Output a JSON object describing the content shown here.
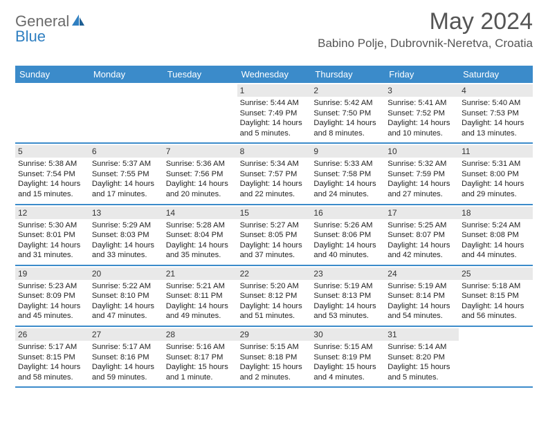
{
  "logo": {
    "general": "General",
    "blue": "Blue"
  },
  "header": {
    "month_title": "May 2024",
    "location": "Babino Polje, Dubrovnik-Neretva, Croatia"
  },
  "colors": {
    "header_bg": "#3b8bca",
    "header_text": "#ffffff",
    "daynum_bg": "#e9e9e9",
    "border": "#3b8bca",
    "title_color": "#555555",
    "text_color": "#222222"
  },
  "weekdays": [
    "Sunday",
    "Monday",
    "Tuesday",
    "Wednesday",
    "Thursday",
    "Friday",
    "Saturday"
  ],
  "weeks": [
    [
      {
        "empty": true
      },
      {
        "empty": true
      },
      {
        "empty": true
      },
      {
        "num": "1",
        "sunrise": "Sunrise: 5:44 AM",
        "sunset": "Sunset: 7:49 PM",
        "day1": "Daylight: 14 hours",
        "day2": "and 5 minutes."
      },
      {
        "num": "2",
        "sunrise": "Sunrise: 5:42 AM",
        "sunset": "Sunset: 7:50 PM",
        "day1": "Daylight: 14 hours",
        "day2": "and 8 minutes."
      },
      {
        "num": "3",
        "sunrise": "Sunrise: 5:41 AM",
        "sunset": "Sunset: 7:52 PM",
        "day1": "Daylight: 14 hours",
        "day2": "and 10 minutes."
      },
      {
        "num": "4",
        "sunrise": "Sunrise: 5:40 AM",
        "sunset": "Sunset: 7:53 PM",
        "day1": "Daylight: 14 hours",
        "day2": "and 13 minutes."
      }
    ],
    [
      {
        "num": "5",
        "sunrise": "Sunrise: 5:38 AM",
        "sunset": "Sunset: 7:54 PM",
        "day1": "Daylight: 14 hours",
        "day2": "and 15 minutes."
      },
      {
        "num": "6",
        "sunrise": "Sunrise: 5:37 AM",
        "sunset": "Sunset: 7:55 PM",
        "day1": "Daylight: 14 hours",
        "day2": "and 17 minutes."
      },
      {
        "num": "7",
        "sunrise": "Sunrise: 5:36 AM",
        "sunset": "Sunset: 7:56 PM",
        "day1": "Daylight: 14 hours",
        "day2": "and 20 minutes."
      },
      {
        "num": "8",
        "sunrise": "Sunrise: 5:34 AM",
        "sunset": "Sunset: 7:57 PM",
        "day1": "Daylight: 14 hours",
        "day2": "and 22 minutes."
      },
      {
        "num": "9",
        "sunrise": "Sunrise: 5:33 AM",
        "sunset": "Sunset: 7:58 PM",
        "day1": "Daylight: 14 hours",
        "day2": "and 24 minutes."
      },
      {
        "num": "10",
        "sunrise": "Sunrise: 5:32 AM",
        "sunset": "Sunset: 7:59 PM",
        "day1": "Daylight: 14 hours",
        "day2": "and 27 minutes."
      },
      {
        "num": "11",
        "sunrise": "Sunrise: 5:31 AM",
        "sunset": "Sunset: 8:00 PM",
        "day1": "Daylight: 14 hours",
        "day2": "and 29 minutes."
      }
    ],
    [
      {
        "num": "12",
        "sunrise": "Sunrise: 5:30 AM",
        "sunset": "Sunset: 8:01 PM",
        "day1": "Daylight: 14 hours",
        "day2": "and 31 minutes."
      },
      {
        "num": "13",
        "sunrise": "Sunrise: 5:29 AM",
        "sunset": "Sunset: 8:03 PM",
        "day1": "Daylight: 14 hours",
        "day2": "and 33 minutes."
      },
      {
        "num": "14",
        "sunrise": "Sunrise: 5:28 AM",
        "sunset": "Sunset: 8:04 PM",
        "day1": "Daylight: 14 hours",
        "day2": "and 35 minutes."
      },
      {
        "num": "15",
        "sunrise": "Sunrise: 5:27 AM",
        "sunset": "Sunset: 8:05 PM",
        "day1": "Daylight: 14 hours",
        "day2": "and 37 minutes."
      },
      {
        "num": "16",
        "sunrise": "Sunrise: 5:26 AM",
        "sunset": "Sunset: 8:06 PM",
        "day1": "Daylight: 14 hours",
        "day2": "and 40 minutes."
      },
      {
        "num": "17",
        "sunrise": "Sunrise: 5:25 AM",
        "sunset": "Sunset: 8:07 PM",
        "day1": "Daylight: 14 hours",
        "day2": "and 42 minutes."
      },
      {
        "num": "18",
        "sunrise": "Sunrise: 5:24 AM",
        "sunset": "Sunset: 8:08 PM",
        "day1": "Daylight: 14 hours",
        "day2": "and 44 minutes."
      }
    ],
    [
      {
        "num": "19",
        "sunrise": "Sunrise: 5:23 AM",
        "sunset": "Sunset: 8:09 PM",
        "day1": "Daylight: 14 hours",
        "day2": "and 45 minutes."
      },
      {
        "num": "20",
        "sunrise": "Sunrise: 5:22 AM",
        "sunset": "Sunset: 8:10 PM",
        "day1": "Daylight: 14 hours",
        "day2": "and 47 minutes."
      },
      {
        "num": "21",
        "sunrise": "Sunrise: 5:21 AM",
        "sunset": "Sunset: 8:11 PM",
        "day1": "Daylight: 14 hours",
        "day2": "and 49 minutes."
      },
      {
        "num": "22",
        "sunrise": "Sunrise: 5:20 AM",
        "sunset": "Sunset: 8:12 PM",
        "day1": "Daylight: 14 hours",
        "day2": "and 51 minutes."
      },
      {
        "num": "23",
        "sunrise": "Sunrise: 5:19 AM",
        "sunset": "Sunset: 8:13 PM",
        "day1": "Daylight: 14 hours",
        "day2": "and 53 minutes."
      },
      {
        "num": "24",
        "sunrise": "Sunrise: 5:19 AM",
        "sunset": "Sunset: 8:14 PM",
        "day1": "Daylight: 14 hours",
        "day2": "and 54 minutes."
      },
      {
        "num": "25",
        "sunrise": "Sunrise: 5:18 AM",
        "sunset": "Sunset: 8:15 PM",
        "day1": "Daylight: 14 hours",
        "day2": "and 56 minutes."
      }
    ],
    [
      {
        "num": "26",
        "sunrise": "Sunrise: 5:17 AM",
        "sunset": "Sunset: 8:15 PM",
        "day1": "Daylight: 14 hours",
        "day2": "and 58 minutes."
      },
      {
        "num": "27",
        "sunrise": "Sunrise: 5:17 AM",
        "sunset": "Sunset: 8:16 PM",
        "day1": "Daylight: 14 hours",
        "day2": "and 59 minutes."
      },
      {
        "num": "28",
        "sunrise": "Sunrise: 5:16 AM",
        "sunset": "Sunset: 8:17 PM",
        "day1": "Daylight: 15 hours",
        "day2": "and 1 minute."
      },
      {
        "num": "29",
        "sunrise": "Sunrise: 5:15 AM",
        "sunset": "Sunset: 8:18 PM",
        "day1": "Daylight: 15 hours",
        "day2": "and 2 minutes."
      },
      {
        "num": "30",
        "sunrise": "Sunrise: 5:15 AM",
        "sunset": "Sunset: 8:19 PM",
        "day1": "Daylight: 15 hours",
        "day2": "and 4 minutes."
      },
      {
        "num": "31",
        "sunrise": "Sunrise: 5:14 AM",
        "sunset": "Sunset: 8:20 PM",
        "day1": "Daylight: 15 hours",
        "day2": "and 5 minutes."
      },
      {
        "empty": true
      }
    ]
  ]
}
